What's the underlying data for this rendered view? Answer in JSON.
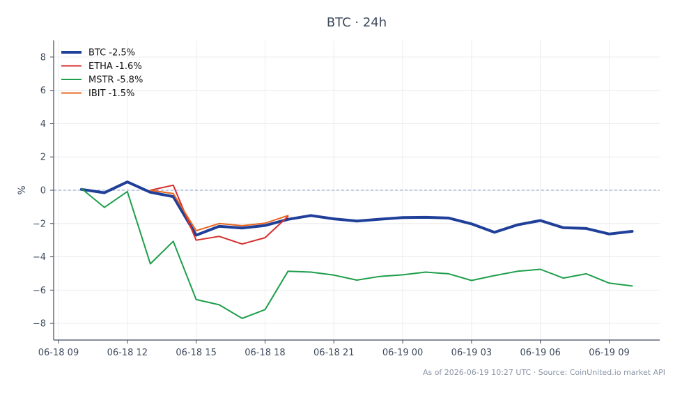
{
  "chart_data": {
    "type": "line",
    "title": "BTC · 24h",
    "xlabel": "",
    "ylabel": "%",
    "ylim": [
      -9,
      9
    ],
    "y_ticks": [
      8,
      6,
      4,
      2,
      0,
      -2,
      -4,
      -6,
      -8
    ],
    "x_range": [
      "2026-06-18 09:00",
      "2026-06-19 11:12"
    ],
    "x_ticks": [
      {
        "time": "2026-06-18 09:00",
        "label": "06-18 09"
      },
      {
        "time": "2026-06-18 12:00",
        "label": "06-18 12"
      },
      {
        "time": "2026-06-18 15:00",
        "label": "06-18 15"
      },
      {
        "time": "2026-06-18 18:00",
        "label": "06-18 18"
      },
      {
        "time": "2026-06-18 21:00",
        "label": "06-18 21"
      },
      {
        "time": "2026-06-19 00:00",
        "label": "06-19 00"
      },
      {
        "time": "2026-06-19 03:00",
        "label": "06-19 03"
      },
      {
        "time": "2026-06-19 06:00",
        "label": "06-19 06"
      },
      {
        "time": "2026-06-19 09:00",
        "label": "06-19 09"
      }
    ],
    "grid": true,
    "zero_line": true,
    "legend_position": "top-left",
    "series": [
      {
        "name": "BTC -2.5%",
        "color": "#1f3f99",
        "line_width": "thick",
        "x": [
          "2026-06-18 10:00",
          "2026-06-18 11:00",
          "2026-06-18 12:00",
          "2026-06-18 13:00",
          "2026-06-18 14:00",
          "2026-06-18 15:00",
          "2026-06-18 16:00",
          "2026-06-18 17:00",
          "2026-06-18 18:00",
          "2026-06-18 19:00",
          "2026-06-18 20:00",
          "2026-06-18 21:00",
          "2026-06-18 22:00",
          "2026-06-18 23:00",
          "2026-06-19 00:00",
          "2026-06-19 01:00",
          "2026-06-19 02:00",
          "2026-06-19 03:00",
          "2026-06-19 04:00",
          "2026-06-19 05:00",
          "2026-06-19 06:00",
          "2026-06-19 07:00",
          "2026-06-19 08:00",
          "2026-06-19 09:00",
          "2026-06-19 10:00"
        ],
        "y": [
          0.05,
          -0.15,
          0.5,
          -0.12,
          -0.38,
          -2.7,
          -2.17,
          -2.27,
          -2.12,
          -1.75,
          -1.52,
          -1.72,
          -1.85,
          -1.74,
          -1.64,
          -1.63,
          -1.67,
          -2.02,
          -2.53,
          -2.08,
          -1.82,
          -2.25,
          -2.3,
          -2.63,
          -2.47
        ]
      },
      {
        "name": "ETHA -1.6%",
        "color": "#d62d2d",
        "line_width": "normal",
        "x": [
          "2026-06-18 13:00",
          "2026-06-18 14:00",
          "2026-06-18 15:00",
          "2026-06-18 16:00",
          "2026-06-18 17:00",
          "2026-06-18 18:00",
          "2026-06-18 19:00"
        ],
        "y": [
          0.0,
          0.3,
          -3.0,
          -2.77,
          -3.23,
          -2.85,
          -1.57
        ]
      },
      {
        "name": "MSTR -5.8%",
        "color": "#1e9e4a",
        "line_width": "normal",
        "x": [
          "2026-06-18 10:00",
          "2026-06-18 11:00",
          "2026-06-18 12:00",
          "2026-06-18 13:00",
          "2026-06-18 14:00",
          "2026-06-18 15:00",
          "2026-06-18 16:00",
          "2026-06-18 17:00",
          "2026-06-18 18:00",
          "2026-06-18 19:00",
          "2026-06-18 20:00",
          "2026-06-18 21:00",
          "2026-06-18 22:00",
          "2026-06-18 23:00",
          "2026-06-19 00:00",
          "2026-06-19 01:00",
          "2026-06-19 02:00",
          "2026-06-19 03:00",
          "2026-06-19 04:00",
          "2026-06-19 05:00",
          "2026-06-19 06:00",
          "2026-06-19 07:00",
          "2026-06-19 08:00",
          "2026-06-19 09:00",
          "2026-06-19 10:00"
        ],
        "y": [
          0.1,
          -1.03,
          -0.08,
          -4.42,
          -3.07,
          -6.57,
          -6.88,
          -7.7,
          -7.17,
          -4.87,
          -4.92,
          -5.1,
          -5.4,
          -5.18,
          -5.08,
          -4.92,
          -5.02,
          -5.42,
          -5.13,
          -4.87,
          -4.75,
          -5.28,
          -5.02,
          -5.58,
          -5.75
        ]
      },
      {
        "name": "IBIT -1.5%",
        "color": "#e8641e",
        "line_width": "normal",
        "x": [
          "2026-06-18 13:00",
          "2026-06-18 14:00",
          "2026-06-18 15:00",
          "2026-06-18 16:00",
          "2026-06-18 17:00",
          "2026-06-18 18:00",
          "2026-06-18 19:00"
        ],
        "y": [
          0.0,
          -0.2,
          -2.43,
          -2.0,
          -2.13,
          -1.98,
          -1.52
        ]
      }
    ]
  },
  "footer": {
    "source_text": "As of 2026-06-19 10:27 UTC · Source: CoinUnited.io market API"
  },
  "colors": {
    "axis": "#3d4a5c",
    "grid": "#ececec",
    "zero_line": "#7f9ccc"
  }
}
